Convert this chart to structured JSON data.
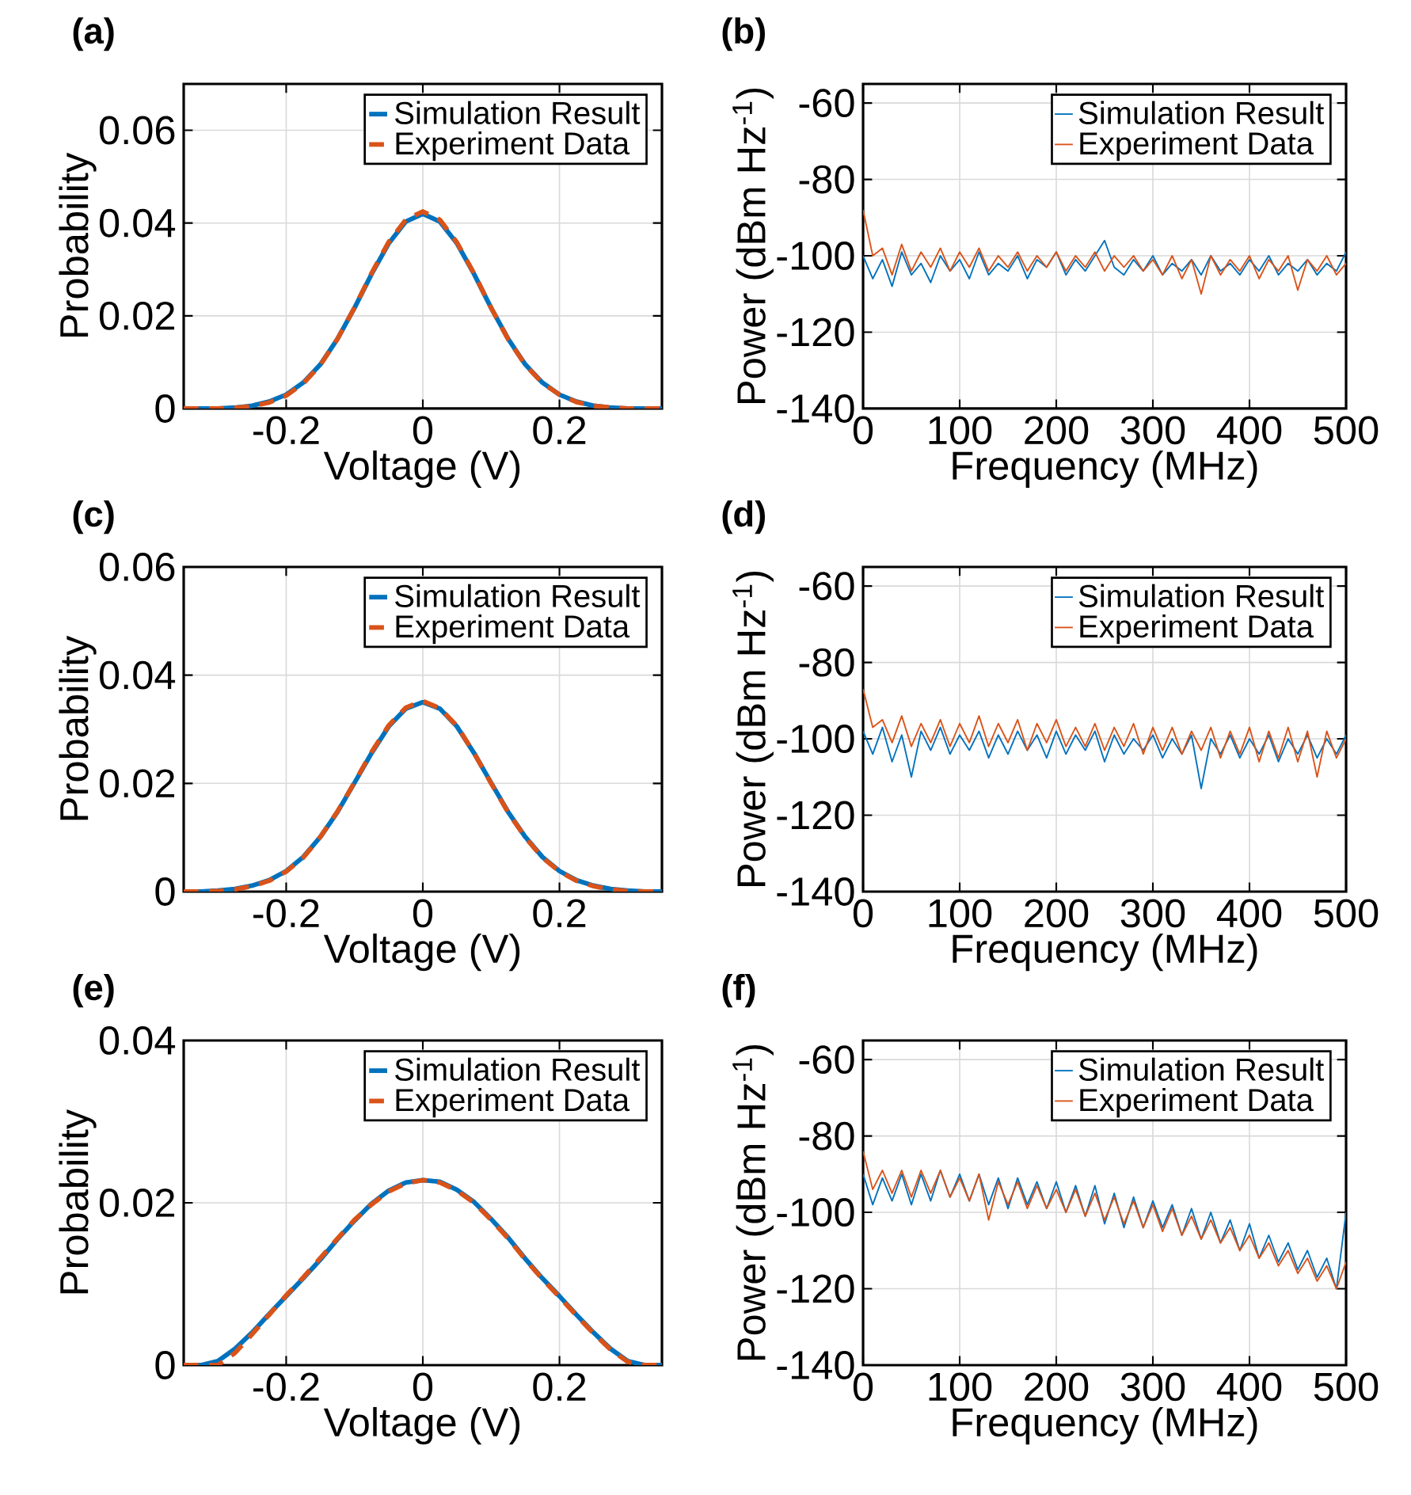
{
  "chart_data": [
    {
      "type": "line",
      "title": "(a)",
      "xlabel": "Voltage (V)",
      "ylabel": "Probability",
      "xlim": [
        -0.35,
        0.35
      ],
      "xticks": [
        -0.2,
        0,
        0.2
      ],
      "ylim": [
        0,
        0.07
      ],
      "yticks": [
        0,
        0.02,
        0.04,
        0.06
      ],
      "grid": true,
      "legend": "top right",
      "x": [
        -0.35,
        -0.325,
        -0.3,
        -0.275,
        -0.25,
        -0.225,
        -0.2,
        -0.175,
        -0.15,
        -0.125,
        -0.1,
        -0.075,
        -0.05,
        -0.025,
        0,
        0.025,
        0.05,
        0.075,
        0.1,
        0.125,
        0.15,
        0.175,
        0.2,
        0.225,
        0.25,
        0.275,
        0.3,
        0.325,
        0.35
      ],
      "series": [
        {
          "name": "Simulation Result",
          "color": "#0072bd",
          "line_style": "solid",
          "values": [
            0,
            0,
            0,
            0.0002,
            0.0006,
            0.0015,
            0.003,
            0.0056,
            0.0095,
            0.015,
            0.0217,
            0.029,
            0.0356,
            0.0403,
            0.042,
            0.0403,
            0.0356,
            0.029,
            0.0217,
            0.015,
            0.0095,
            0.0056,
            0.003,
            0.0015,
            0.0006,
            0.0002,
            0,
            0,
            0
          ]
        },
        {
          "name": "Experiment Data",
          "color": "#d95319",
          "line_style": "dashed",
          "values": [
            0,
            0,
            0,
            0.0002,
            0.0005,
            0.0013,
            0.0028,
            0.0054,
            0.0094,
            0.015,
            0.0218,
            0.0292,
            0.0359,
            0.0407,
            0.0425,
            0.0407,
            0.0358,
            0.0291,
            0.0217,
            0.0149,
            0.0094,
            0.0055,
            0.003,
            0.0014,
            0.0006,
            0.0002,
            0,
            0,
            0
          ]
        }
      ]
    },
    {
      "type": "line",
      "title": "(b)",
      "xlabel": "Frequency (MHz)",
      "ylabel": "Power (dBm Hz$^{-1}$)",
      "xlim": [
        0,
        500
      ],
      "xticks": [
        0,
        100,
        200,
        300,
        400,
        500
      ],
      "ylim": [
        -140,
        -55
      ],
      "yticks": [
        -140,
        -120,
        -100,
        -80,
        -60
      ],
      "grid": true,
      "legend": "top right",
      "x": [
        0,
        10,
        20,
        30,
        40,
        50,
        60,
        70,
        80,
        90,
        100,
        110,
        120,
        130,
        140,
        150,
        160,
        170,
        180,
        190,
        200,
        210,
        220,
        230,
        240,
        250,
        260,
        270,
        280,
        290,
        300,
        310,
        320,
        330,
        340,
        350,
        360,
        370,
        380,
        390,
        400,
        410,
        420,
        430,
        440,
        450,
        460,
        470,
        480,
        490,
        500
      ],
      "series": [
        {
          "name": "Simulation Result",
          "color": "#0072bd",
          "line_style": "solid",
          "values": [
            -100,
            -106,
            -101,
            -108,
            -99,
            -105,
            -102,
            -107,
            -100,
            -104,
            -101,
            -106,
            -99,
            -105,
            -102,
            -104,
            -100,
            -106,
            -101,
            -103,
            -99,
            -105,
            -101,
            -104,
            -100,
            -96,
            -103,
            -105,
            -101,
            -104,
            -100,
            -105,
            -102,
            -104,
            -101,
            -105,
            -100,
            -104,
            -102,
            -105,
            -101,
            -104,
            -100,
            -105,
            -102,
            -104,
            -101,
            -105,
            -102,
            -104,
            -99
          ]
        },
        {
          "name": "Experiment Data",
          "color": "#d95319",
          "line_style": "solid",
          "values": [
            -88,
            -100,
            -98,
            -105,
            -97,
            -104,
            -99,
            -103,
            -98,
            -104,
            -99,
            -103,
            -98,
            -104,
            -100,
            -103,
            -99,
            -104,
            -100,
            -103,
            -99,
            -104,
            -100,
            -103,
            -99,
            -104,
            -100,
            -103,
            -100,
            -104,
            -101,
            -105,
            -100,
            -106,
            -101,
            -110,
            -100,
            -105,
            -101,
            -104,
            -100,
            -106,
            -101,
            -104,
            -100,
            -109,
            -101,
            -104,
            -100,
            -105,
            -102
          ]
        }
      ]
    },
    {
      "type": "line",
      "title": "(c)",
      "xlabel": "Voltage (V)",
      "ylabel": "Probability",
      "xlim": [
        -0.35,
        0.35
      ],
      "xticks": [
        -0.2,
        0,
        0.2
      ],
      "ylim": [
        0,
        0.06
      ],
      "yticks": [
        0,
        0.02,
        0.04,
        0.06
      ],
      "grid": true,
      "legend": "top right",
      "x": [
        -0.35,
        -0.325,
        -0.3,
        -0.275,
        -0.25,
        -0.225,
        -0.2,
        -0.175,
        -0.15,
        -0.125,
        -0.1,
        -0.075,
        -0.05,
        -0.025,
        0,
        0.025,
        0.05,
        0.075,
        0.1,
        0.125,
        0.15,
        0.175,
        0.2,
        0.225,
        0.25,
        0.275,
        0.3,
        0.325,
        0.35
      ],
      "series": [
        {
          "name": "Simulation Result",
          "color": "#0072bd",
          "line_style": "solid",
          "values": [
            0,
            0,
            0.0002,
            0.0005,
            0.0011,
            0.0021,
            0.0038,
            0.0064,
            0.0101,
            0.0147,
            0.0201,
            0.0256,
            0.0305,
            0.0338,
            0.035,
            0.0338,
            0.0305,
            0.0256,
            0.0201,
            0.0147,
            0.0101,
            0.0064,
            0.0038,
            0.0021,
            0.0011,
            0.0005,
            0.0002,
            0,
            0
          ]
        },
        {
          "name": "Experiment Data",
          "color": "#d95319",
          "line_style": "dashed",
          "values": [
            0,
            0,
            0.0001,
            0.0004,
            0.001,
            0.002,
            0.0037,
            0.0063,
            0.0101,
            0.0148,
            0.0202,
            0.0258,
            0.0307,
            0.034,
            0.0352,
            0.0339,
            0.0306,
            0.0256,
            0.02,
            0.0146,
            0.01,
            0.0063,
            0.0037,
            0.002,
            0.001,
            0.0004,
            0.0001,
            0,
            0
          ]
        }
      ]
    },
    {
      "type": "line",
      "title": "(d)",
      "xlabel": "Frequency (MHz)",
      "ylabel": "Power (dBm Hz$^{-1}$)",
      "xlim": [
        0,
        500
      ],
      "xticks": [
        0,
        100,
        200,
        300,
        400,
        500
      ],
      "ylim": [
        -140,
        -55
      ],
      "yticks": [
        -140,
        -120,
        -100,
        -80,
        -60
      ],
      "grid": true,
      "legend": "top right",
      "x": [
        0,
        10,
        20,
        30,
        40,
        50,
        60,
        70,
        80,
        90,
        100,
        110,
        120,
        130,
        140,
        150,
        160,
        170,
        180,
        190,
        200,
        210,
        220,
        230,
        240,
        250,
        260,
        270,
        280,
        290,
        300,
        310,
        320,
        330,
        340,
        350,
        360,
        370,
        380,
        390,
        400,
        410,
        420,
        430,
        440,
        450,
        460,
        470,
        480,
        490,
        500
      ],
      "series": [
        {
          "name": "Simulation Result",
          "color": "#0072bd",
          "line_style": "solid",
          "values": [
            -98,
            -104,
            -97,
            -106,
            -99,
            -110,
            -98,
            -103,
            -97,
            -104,
            -99,
            -103,
            -98,
            -105,
            -99,
            -104,
            -98,
            -103,
            -99,
            -105,
            -98,
            -104,
            -99,
            -103,
            -98,
            -106,
            -99,
            -104,
            -100,
            -103,
            -99,
            -105,
            -100,
            -104,
            -99,
            -113,
            -100,
            -104,
            -99,
            -105,
            -100,
            -104,
            -99,
            -106,
            -100,
            -104,
            -99,
            -105,
            -100,
            -104,
            -99
          ]
        },
        {
          "name": "Experiment Data",
          "color": "#d95319",
          "line_style": "solid",
          "values": [
            -87,
            -97,
            -95,
            -101,
            -94,
            -102,
            -96,
            -101,
            -95,
            -102,
            -96,
            -101,
            -94,
            -102,
            -96,
            -101,
            -95,
            -103,
            -96,
            -101,
            -95,
            -102,
            -97,
            -102,
            -96,
            -103,
            -97,
            -102,
            -96,
            -104,
            -97,
            -103,
            -97,
            -104,
            -98,
            -103,
            -97,
            -105,
            -98,
            -104,
            -97,
            -106,
            -98,
            -105,
            -97,
            -106,
            -98,
            -110,
            -98,
            -105,
            -100
          ]
        }
      ]
    },
    {
      "type": "line",
      "title": "(e)",
      "xlabel": "Voltage (V)",
      "ylabel": "Probability",
      "xlim": [
        -0.35,
        0.35
      ],
      "xticks": [
        -0.2,
        0,
        0.2
      ],
      "ylim": [
        0,
        0.04
      ],
      "yticks": [
        0,
        0.02,
        0.04
      ],
      "grid": true,
      "legend": "top right",
      "x": [
        -0.35,
        -0.325,
        -0.3,
        -0.275,
        -0.25,
        -0.225,
        -0.2,
        -0.175,
        -0.15,
        -0.125,
        -0.1,
        -0.075,
        -0.05,
        -0.025,
        0,
        0.025,
        0.05,
        0.075,
        0.1,
        0.125,
        0.15,
        0.175,
        0.2,
        0.225,
        0.25,
        0.275,
        0.3,
        0.325,
        0.35
      ],
      "series": [
        {
          "name": "Simulation Result",
          "color": "#0072bd",
          "line_style": "solid",
          "values": [
            0,
            0,
            0.0005,
            0.002,
            0.004,
            0.0063,
            0.0085,
            0.0107,
            0.013,
            0.0155,
            0.0178,
            0.0199,
            0.0215,
            0.0225,
            0.0228,
            0.0226,
            0.0216,
            0.0201,
            0.018,
            0.0157,
            0.0131,
            0.0107,
            0.0085,
            0.0062,
            0.004,
            0.002,
            0.0005,
            0,
            0
          ]
        },
        {
          "name": "Experiment Data",
          "color": "#d95319",
          "line_style": "dashed",
          "values": [
            0,
            0,
            0,
            0.0015,
            0.0038,
            0.0062,
            0.0086,
            0.0108,
            0.0132,
            0.0156,
            0.0179,
            0.0198,
            0.0214,
            0.0224,
            0.0228,
            0.0225,
            0.0215,
            0.02,
            0.0179,
            0.0156,
            0.013,
            0.0106,
            0.0084,
            0.0061,
            0.0039,
            0.0019,
            0.0004,
            0,
            0
          ]
        }
      ]
    },
    {
      "type": "line",
      "title": "(f)",
      "xlabel": "Frequency (MHz)",
      "ylabel": "Power (dBm Hz$^{-1}$)",
      "xlim": [
        0,
        500
      ],
      "xticks": [
        0,
        100,
        200,
        300,
        400,
        500
      ],
      "ylim": [
        -140,
        -55
      ],
      "yticks": [
        -140,
        -120,
        -100,
        -80,
        -60
      ],
      "grid": true,
      "legend": "top right",
      "x": [
        0,
        10,
        20,
        30,
        40,
        50,
        60,
        70,
        80,
        90,
        100,
        110,
        120,
        130,
        140,
        150,
        160,
        170,
        180,
        190,
        200,
        210,
        220,
        230,
        240,
        250,
        260,
        270,
        280,
        290,
        300,
        310,
        320,
        330,
        340,
        350,
        360,
        370,
        380,
        390,
        400,
        410,
        420,
        430,
        440,
        450,
        460,
        470,
        480,
        490,
        500
      ],
      "series": [
        {
          "name": "Simulation Result",
          "color": "#0072bd",
          "line_style": "solid",
          "values": [
            -90,
            -98,
            -91,
            -97,
            -90,
            -98,
            -90,
            -97,
            -89,
            -96,
            -90,
            -97,
            -90,
            -98,
            -91,
            -99,
            -91,
            -98,
            -92,
            -99,
            -92,
            -100,
            -93,
            -101,
            -93,
            -103,
            -95,
            -104,
            -96,
            -104,
            -97,
            -104,
            -98,
            -106,
            -99,
            -107,
            -100,
            -108,
            -102,
            -110,
            -103,
            -112,
            -106,
            -113,
            -108,
            -115,
            -110,
            -117,
            -112,
            -120,
            -100
          ]
        },
        {
          "name": "Experiment Data",
          "color": "#d95319",
          "line_style": "solid",
          "values": [
            -84,
            -94,
            -89,
            -95,
            -89,
            -96,
            -89,
            -95,
            -89,
            -96,
            -91,
            -97,
            -90,
            -102,
            -92,
            -98,
            -92,
            -99,
            -93,
            -99,
            -94,
            -100,
            -94,
            -101,
            -95,
            -102,
            -96,
            -103,
            -97,
            -104,
            -98,
            -105,
            -99,
            -106,
            -101,
            -107,
            -102,
            -108,
            -104,
            -110,
            -106,
            -112,
            -108,
            -114,
            -110,
            -116,
            -112,
            -118,
            -114,
            -120,
            -113
          ]
        }
      ]
    }
  ]
}
